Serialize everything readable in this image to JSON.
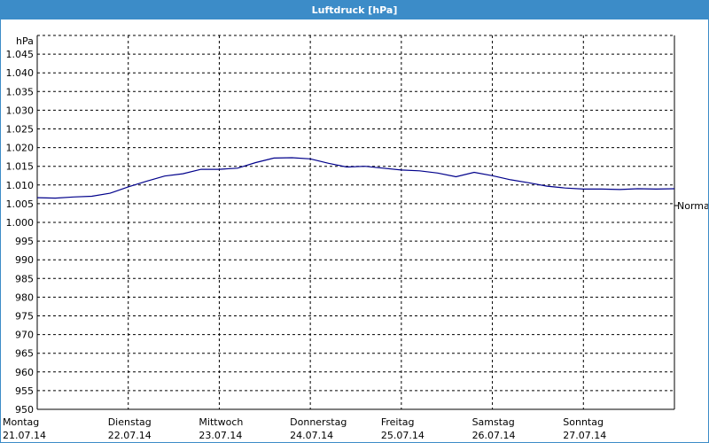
{
  "window": {
    "title": "Luftdruck [hPa]"
  },
  "chart_data": {
    "type": "line",
    "title": "Luftdruck [hPa]",
    "ylabel": "hPa",
    "xlabel": "",
    "ylim": [
      950,
      1050
    ],
    "yticks": [
      950,
      955,
      960,
      965,
      970,
      975,
      980,
      985,
      990,
      995,
      1000,
      1005,
      1010,
      1015,
      1020,
      1025,
      1030,
      1035,
      1040,
      1045
    ],
    "ytick_labels": [
      "950",
      "955",
      "960",
      "965",
      "970",
      "975",
      "980",
      "985",
      "990",
      "995",
      "1.000",
      "1.005",
      "1.010",
      "1.015",
      "1.020",
      "1.025",
      "1.030",
      "1.035",
      "1.040",
      "1.045"
    ],
    "x_unit": "days",
    "xlim": [
      0,
      7
    ],
    "x_categories": [
      {
        "day": "Montag",
        "date": "21.07.14"
      },
      {
        "day": "Dienstag",
        "date": "22.07.14"
      },
      {
        "day": "Mittwoch",
        "date": "23.07.14"
      },
      {
        "day": "Donnerstag",
        "date": "24.07.14"
      },
      {
        "day": "Freitag",
        "date": "25.07.14"
      },
      {
        "day": "Samstag",
        "date": "26.07.14"
      },
      {
        "day": "Sonntag",
        "date": "27.07.14"
      }
    ],
    "grid": true,
    "line_color": "#00008b",
    "normal_label": "Normal",
    "normal_value": 1004.5,
    "series": [
      {
        "x": [
          0,
          0.2,
          0.4,
          0.6,
          0.8,
          1.0,
          1.2,
          1.4,
          1.6,
          1.8,
          2.0,
          2.2,
          2.4,
          2.6,
          2.8,
          3.0,
          3.2,
          3.4,
          3.6,
          3.8,
          4.0,
          4.2,
          4.4,
          4.6,
          4.8,
          5.0,
          5.2,
          5.4,
          5.6,
          5.8,
          6.0,
          6.2,
          6.4,
          6.6,
          6.8,
          7.0
        ],
        "y": [
          1006.6,
          1006.5,
          1006.8,
          1007.0,
          1007.8,
          1009.5,
          1011.0,
          1012.4,
          1013.0,
          1014.2,
          1014.2,
          1014.5,
          1016.0,
          1017.2,
          1017.3,
          1017.0,
          1015.8,
          1014.8,
          1015.0,
          1014.5,
          1014.0,
          1013.8,
          1013.2,
          1012.2,
          1013.4,
          1012.5,
          1011.4,
          1010.6,
          1009.7,
          1009.2,
          1008.9,
          1008.9,
          1008.8,
          1009.0,
          1008.9,
          1009.0
        ]
      }
    ]
  }
}
